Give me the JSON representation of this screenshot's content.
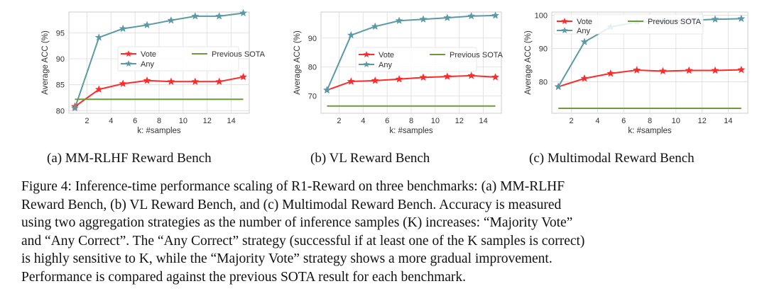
{
  "chart_data": [
    {
      "type": "line",
      "x": [
        1,
        3,
        5,
        7,
        9,
        11,
        13,
        15
      ],
      "xticks": [
        2,
        4,
        6,
        8,
        10,
        12,
        14
      ],
      "xlim": [
        0.5,
        15.5
      ],
      "yticks": [
        80,
        85,
        90,
        95
      ],
      "ylim": [
        79.5,
        99
      ],
      "xlabel": "k: #samples",
      "ylabel": "Average ACC (%)",
      "grid": true,
      "legend_position": "center-right",
      "series": [
        {
          "name": "Vote",
          "color": "#ff2a2a",
          "marker": "star",
          "values": [
            80.8,
            84.1,
            85.2,
            85.8,
            85.6,
            85.6,
            85.6,
            86.5
          ]
        },
        {
          "name": "Any",
          "color": "#5a9aa5",
          "marker": "star",
          "values": [
            80.5,
            94.1,
            95.8,
            96.5,
            97.4,
            98.2,
            98.2,
            98.8
          ]
        },
        {
          "name": "Previous SOTA",
          "color": "#6f9a3c",
          "marker": "none",
          "values": [
            82.2,
            82.2,
            82.2,
            82.2,
            82.2,
            82.2,
            82.2,
            82.2
          ]
        }
      ]
    },
    {
      "type": "line",
      "x": [
        1,
        3,
        5,
        7,
        9,
        11,
        13,
        15
      ],
      "xticks": [
        2,
        4,
        6,
        8,
        10,
        12,
        14
      ],
      "xlim": [
        0.5,
        15.5
      ],
      "yticks": [
        70,
        80,
        90
      ],
      "ylim": [
        64,
        99
      ],
      "xlabel": "k: #samples",
      "ylabel": "Average ACC (%)",
      "grid": true,
      "legend_position": "center-right",
      "series": [
        {
          "name": "Vote",
          "color": "#ff2a2a",
          "marker": "star",
          "values": [
            72.0,
            75.0,
            75.3,
            75.8,
            76.4,
            76.7,
            77.0,
            76.5
          ]
        },
        {
          "name": "Any",
          "color": "#5a9aa5",
          "marker": "star",
          "values": [
            72.0,
            91.0,
            94.0,
            96.0,
            96.5,
            97.0,
            97.6,
            97.8
          ]
        },
        {
          "name": "Previous SOTA",
          "color": "#6f9a3c",
          "marker": "none",
          "values": [
            66.5,
            66.5,
            66.5,
            66.5,
            66.5,
            66.5,
            66.5,
            66.5
          ]
        }
      ]
    },
    {
      "type": "line",
      "x": [
        1,
        3,
        5,
        7,
        9,
        11,
        13,
        15
      ],
      "xticks": [
        2,
        4,
        6,
        8,
        10,
        12,
        14
      ],
      "xlim": [
        0.5,
        15.5
      ],
      "yticks": [
        80,
        90,
        100
      ],
      "ylim": [
        70.5,
        101
      ],
      "xlabel": "k: #samples",
      "ylabel": "Average ACC (%)",
      "grid": true,
      "legend_position": "top",
      "series": [
        {
          "name": "Vote",
          "color": "#ff2a2a",
          "marker": "star",
          "values": [
            78.5,
            81.0,
            82.5,
            83.5,
            83.2,
            83.4,
            83.4,
            83.6
          ]
        },
        {
          "name": "Any",
          "color": "#5a9aa5",
          "marker": "star",
          "values": [
            78.5,
            92.0,
            96.5,
            98.0,
            98.2,
            98.5,
            98.8,
            99.0
          ]
        },
        {
          "name": "Previous SOTA",
          "color": "#6f9a3c",
          "marker": "none",
          "values": [
            72.0,
            72.0,
            72.0,
            72.0,
            72.0,
            72.0,
            72.0,
            72.0
          ]
        }
      ]
    }
  ],
  "subcaptions": [
    "(a) MM-RLHF Reward Bench",
    "(b) VL Reward Bench",
    "(c) Multimodal Reward Bench"
  ],
  "caption_lines": [
    "Figure 4: Inference-time performance scaling of R1-Reward on three benchmarks: (a) MM-RLHF",
    "Reward Bench, (b) VL Reward Bench, and (c) Multimodal Reward Bench. Accuracy is measured",
    "using two aggregation strategies as the number of inference samples (K) increases: “Majority Vote”",
    "and “Any Correct”. The “Any Correct” strategy (successful if at least one of the K samples is correct)",
    "is highly sensitive to K, while the “Majority Vote” strategy shows a more gradual improvement.",
    "Performance is compared against the previous SOTA result for each benchmark."
  ]
}
